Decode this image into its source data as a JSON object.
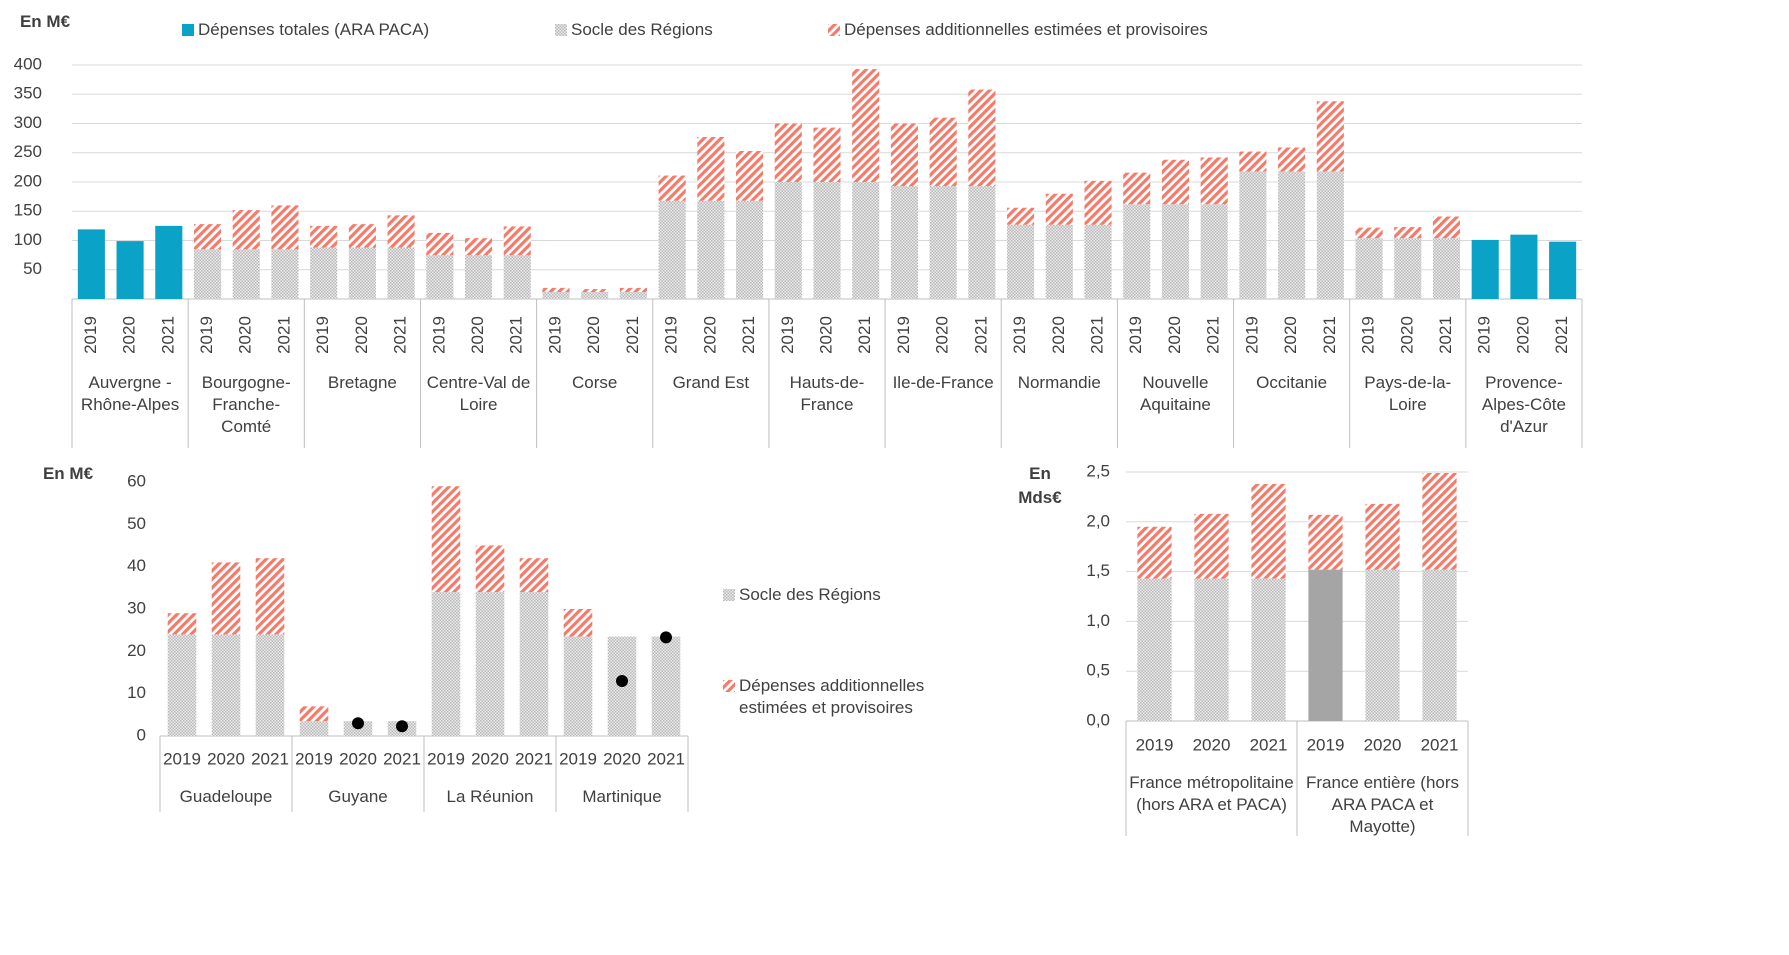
{
  "chart_data": [
    {
      "type": "bar",
      "y_label": "En M€",
      "legend": "top",
      "grid": true,
      "ylim": [
        0,
        400
      ],
      "yticks": [
        50,
        100,
        150,
        200,
        250,
        300,
        350,
        400
      ],
      "categories": [
        "2019",
        "2020",
        "2021",
        "2019",
        "2020",
        "2021",
        "2019",
        "2020",
        "2021",
        "2019",
        "2020",
        "2021",
        "2019",
        "2020",
        "2021",
        "2019",
        "2020",
        "2021",
        "2019",
        "2020",
        "2021",
        "2019",
        "2020",
        "2021",
        "2019",
        "2020",
        "2021",
        "2019",
        "2020",
        "2021",
        "2019",
        "2020",
        "2021",
        "2019",
        "2020",
        "2021",
        "2019",
        "2020",
        "2021"
      ],
      "groups": [
        "Auvergne - Rhône-Alpes",
        "Bourgogne-Franche-Comté",
        "Bretagne",
        "Centre-Val de Loire",
        "Corse",
        "Grand Est",
        "Hauts-de-France",
        "Ile-de-France",
        "Normandie",
        "Nouvelle Aquitaine",
        "Occitanie",
        "Pays-de-la-Loire",
        "Provence-Alpes-Côte d'Azur"
      ],
      "series": [
        {
          "name": "Dépenses totales (ARA PACA)",
          "color": "#0aa3c7",
          "values": [
            119,
            99,
            125,
            null,
            null,
            null,
            null,
            null,
            null,
            null,
            null,
            null,
            null,
            null,
            null,
            null,
            null,
            null,
            null,
            null,
            null,
            null,
            null,
            null,
            null,
            null,
            null,
            null,
            null,
            null,
            null,
            null,
            null,
            null,
            null,
            null,
            101,
            110,
            98
          ]
        },
        {
          "name": "Socle des Régions",
          "color": "#b8b8b8",
          "pattern": "dots",
          "values": [
            null,
            null,
            null,
            85,
            85,
            85,
            88,
            88,
            88,
            75,
            75,
            75,
            12,
            12,
            12,
            168,
            168,
            168,
            200,
            200,
            200,
            193,
            193,
            193,
            127,
            127,
            127,
            162,
            162,
            162,
            218,
            218,
            218,
            104,
            104,
            104,
            null,
            null,
            null
          ]
        },
        {
          "name": "Dépenses additionnelles estimées et provisoires",
          "color": "#f47a6a",
          "pattern": "stripes",
          "values": [
            null,
            null,
            null,
            43,
            67,
            75,
            37,
            40,
            55,
            38,
            29,
            49,
            7,
            5,
            7,
            43,
            109,
            85,
            100,
            93,
            193,
            107,
            117,
            165,
            29,
            53,
            75,
            54,
            76,
            80,
            34,
            41,
            120,
            18,
            19,
            37,
            null,
            null,
            null
          ]
        }
      ]
    },
    {
      "type": "bar",
      "y_label": "En M€",
      "legend": "right",
      "grid": false,
      "ylim": [
        0,
        60
      ],
      "yticks": [
        0,
        10,
        20,
        30,
        40,
        50,
        60
      ],
      "categories": [
        "2019",
        "2020",
        "2021",
        "2019",
        "2020",
        "2021",
        "2019",
        "2020",
        "2021",
        "2019",
        "2020",
        "2021"
      ],
      "groups": [
        "Guadeloupe",
        "Guyane",
        "La Réunion",
        "Martinique"
      ],
      "series": [
        {
          "name": "Socle des Régions",
          "color": "#b8b8b8",
          "pattern": "dots",
          "values": [
            24,
            24,
            24,
            3.5,
            3.5,
            3.5,
            34,
            34,
            34,
            23.5,
            23.5,
            23.5
          ]
        },
        {
          "name": "Dépenses additionnelles estimées et provisoires",
          "color": "#f47a6a",
          "pattern": "stripes",
          "values": [
            5,
            17,
            18,
            3.5,
            null,
            null,
            25,
            11,
            8,
            6.5,
            null,
            null
          ]
        },
        {
          "color": "#000000",
          "marker": "dot",
          "values": [
            null,
            null,
            null,
            null,
            3,
            2.3,
            null,
            null,
            null,
            null,
            13,
            23.3
          ]
        }
      ]
    },
    {
      "type": "bar",
      "y_label": "En Mds€",
      "grid": true,
      "ylim": [
        0,
        2.5
      ],
      "yticks": [
        {
          "value": 0,
          "label": "0,0"
        },
        {
          "value": 0.5,
          "label": "0,5"
        },
        {
          "value": 1,
          "label": "1,0"
        },
        {
          "value": 1.5,
          "label": "1,5"
        },
        {
          "value": 2,
          "label": "2,0"
        },
        {
          "value": 2.5,
          "label": "2,5"
        }
      ],
      "categories": [
        "2019",
        "2020",
        "2021",
        "2019",
        "2020",
        "2021"
      ],
      "groups": [
        "France métropolitaine (hors ARA et PACA)",
        "France entière (hors ARA PACA et Mayotte)"
      ],
      "series": [
        {
          "name": "Socle des Régions",
          "color": "#b8b8b8",
          "pattern": "dots",
          "colors": [
            null,
            null,
            null,
            "#a5a5a5",
            null,
            null
          ],
          "values": [
            1.43,
            1.43,
            1.43,
            1.52,
            1.52,
            1.52
          ]
        },
        {
          "name": "Dépenses additionnelles estimées et provisoires",
          "color": "#f47a6a",
          "pattern": "stripes",
          "values": [
            0.52,
            0.65,
            0.95,
            0.55,
            0.66,
            0.97
          ]
        }
      ]
    }
  ]
}
